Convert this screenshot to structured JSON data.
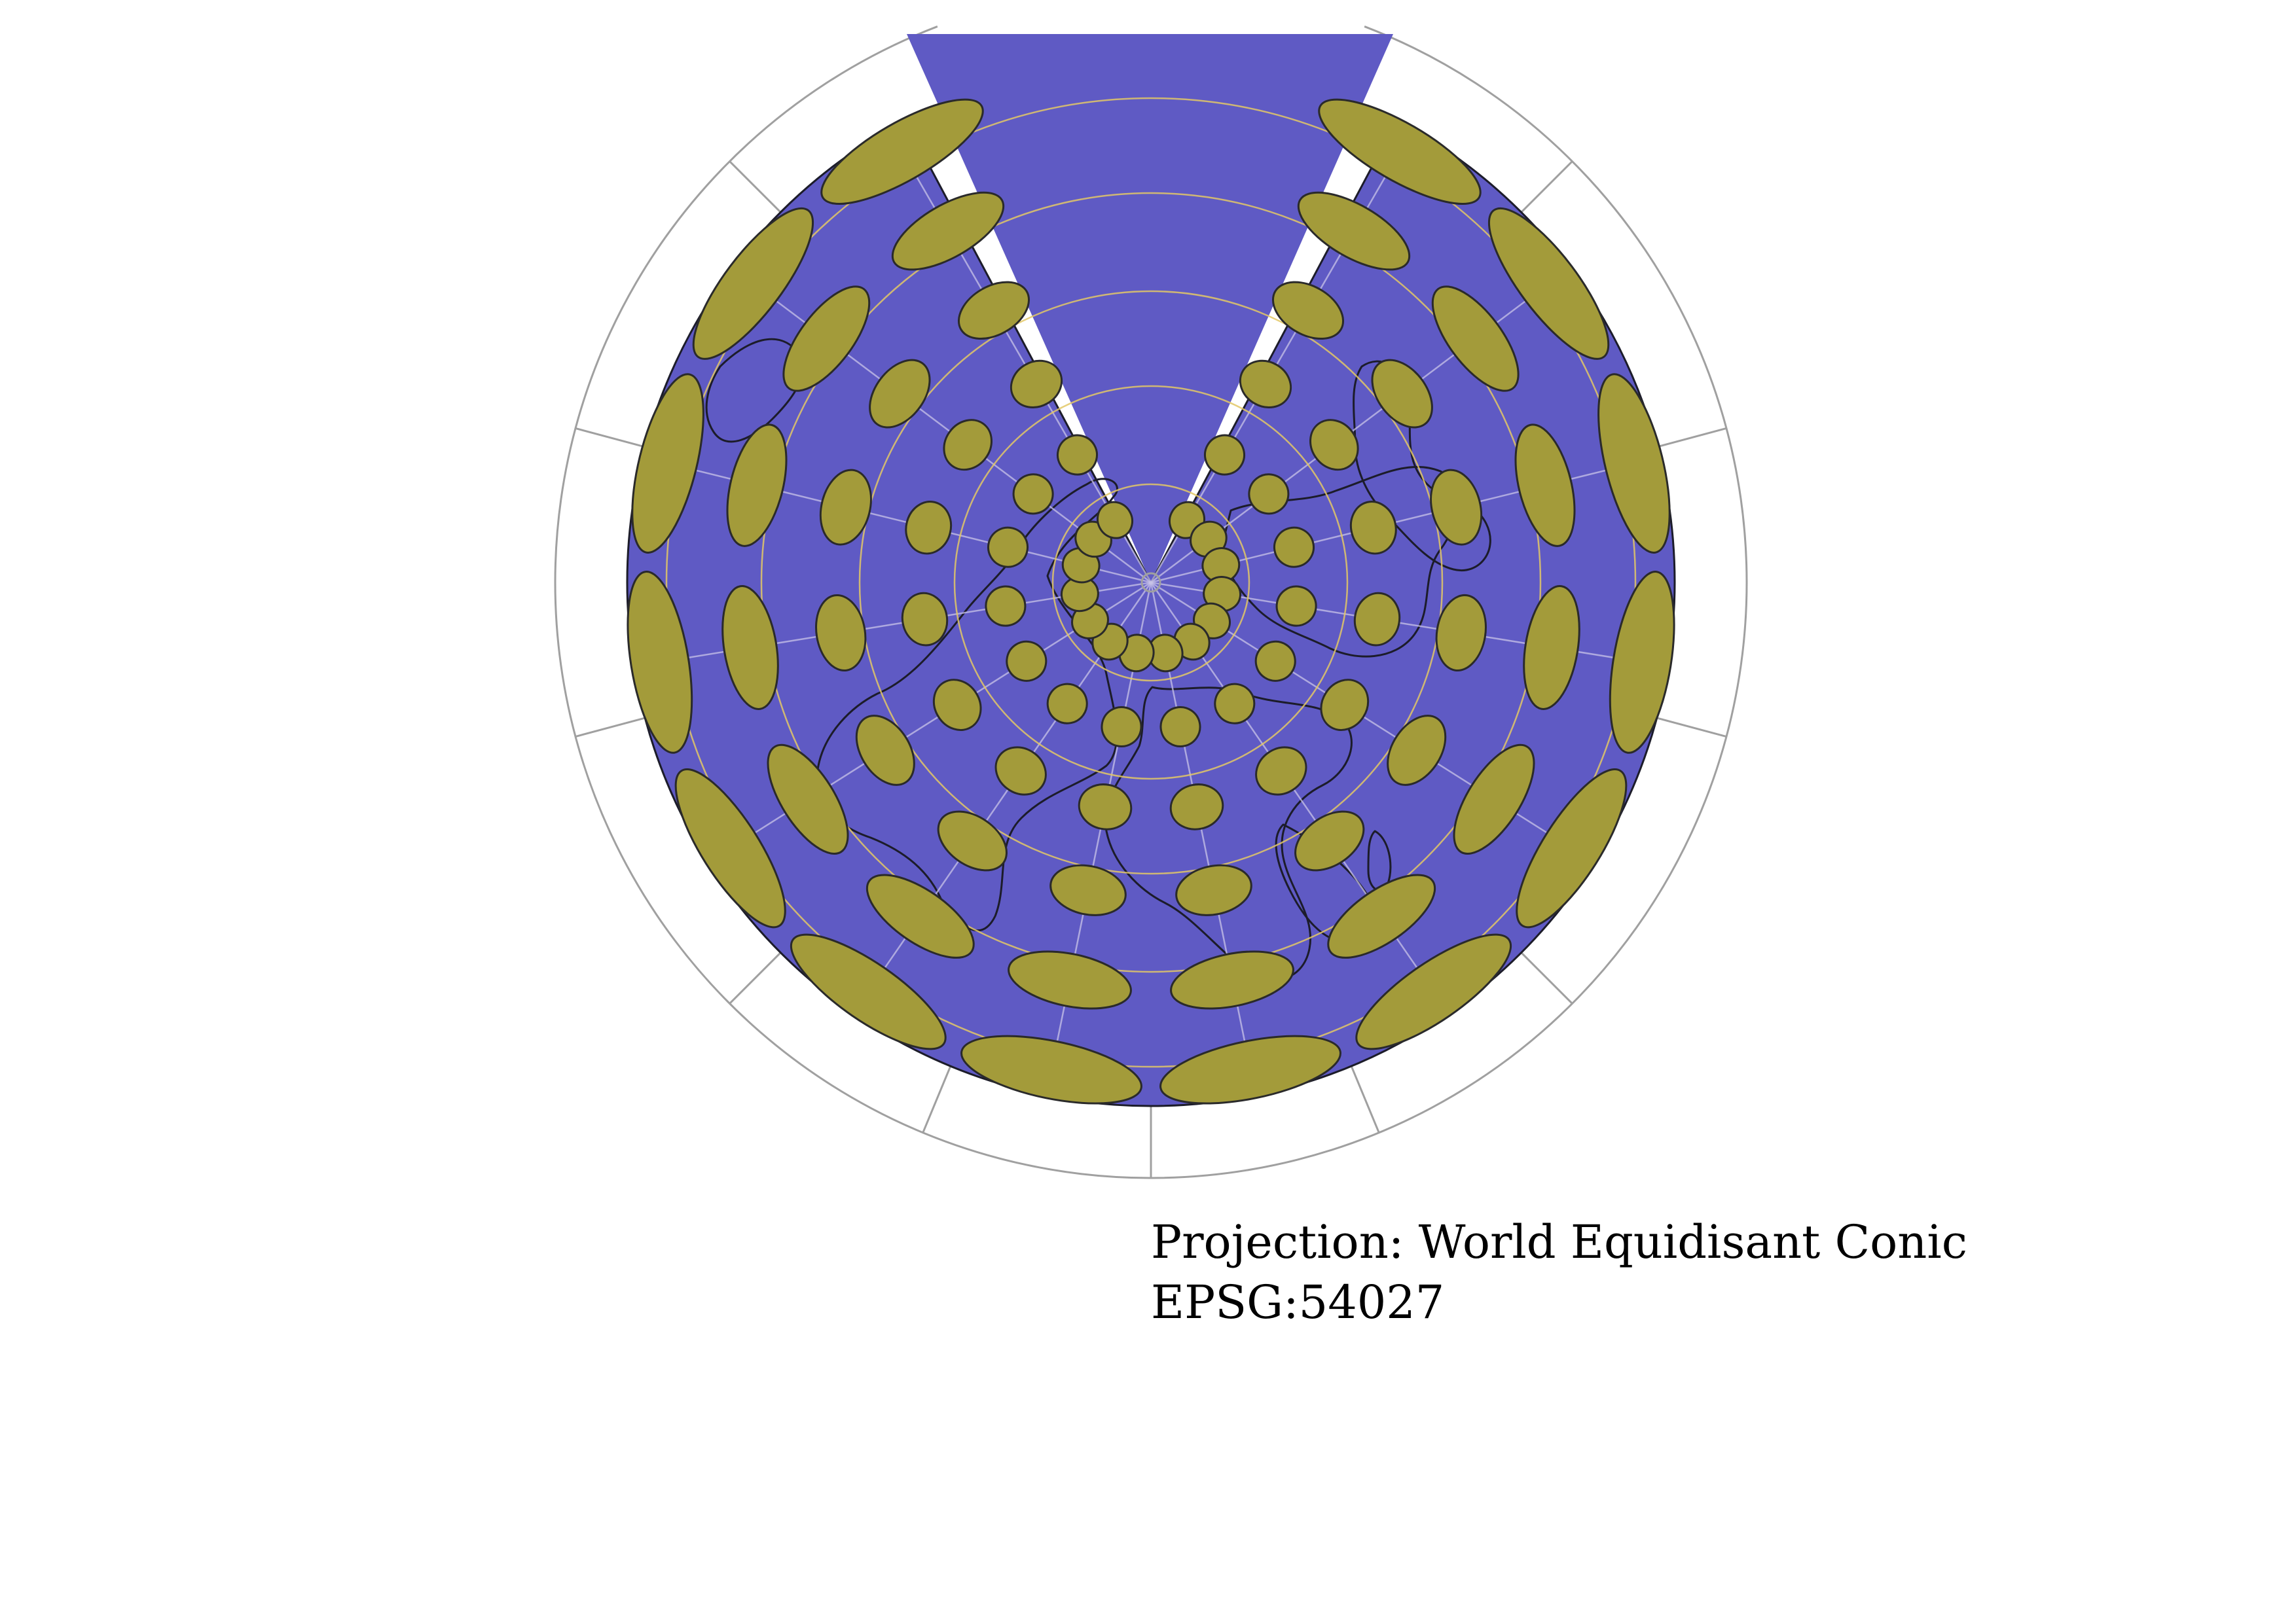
{
  "caption": {
    "projection_line": "Projection: World Equidisant Conic",
    "epsg_line": "EPSG:54027"
  },
  "colors": {
    "ocean": "#5f5ac4",
    "ellipse_fill": "#a39b3a",
    "ellipse_stroke": "#2a2a2a",
    "graticule_inner": "#e3c866",
    "frame_grid": "#a0a0a0",
    "coastline": "#1c1c2a",
    "background": "#ffffff"
  },
  "map": {
    "type": "polar equidistant conic map with Tissot indicatrices",
    "tissot_rows": 6,
    "tissot_spokes": 14
  }
}
